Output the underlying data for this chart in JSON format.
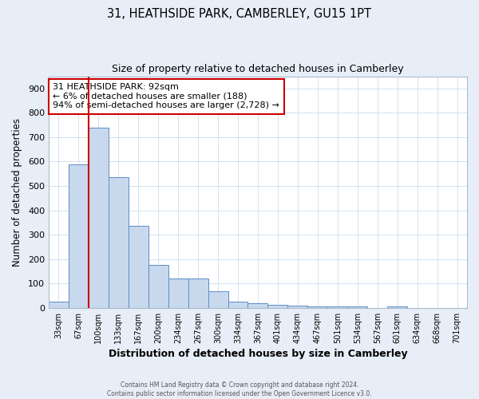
{
  "title": "31, HEATHSIDE PARK, CAMBERLEY, GU15 1PT",
  "subtitle": "Size of property relative to detached houses in Camberley",
  "xlabel": "Distribution of detached houses by size in Camberley",
  "ylabel": "Number of detached properties",
  "bar_labels": [
    "33sqm",
    "67sqm",
    "100sqm",
    "133sqm",
    "167sqm",
    "200sqm",
    "234sqm",
    "267sqm",
    "300sqm",
    "334sqm",
    "367sqm",
    "401sqm",
    "434sqm",
    "467sqm",
    "501sqm",
    "534sqm",
    "567sqm",
    "601sqm",
    "634sqm",
    "668sqm",
    "701sqm"
  ],
  "bar_values": [
    25,
    590,
    740,
    535,
    337,
    177,
    120,
    120,
    67,
    25,
    20,
    12,
    8,
    6,
    6,
    6,
    0,
    5,
    0,
    0,
    0
  ],
  "bar_color": "#c8d9ee",
  "bar_edgecolor": "#5b8cc8",
  "ylim": [
    0,
    950
  ],
  "yticks": [
    0,
    100,
    200,
    300,
    400,
    500,
    600,
    700,
    800,
    900
  ],
  "property_line_color": "#cc0000",
  "annotation_text": "31 HEATHSIDE PARK: 92sqm\n← 6% of detached houses are smaller (188)\n94% of semi-detached houses are larger (2,728) →",
  "footer_line1": "Contains HM Land Registry data © Crown copyright and database right 2024.",
  "footer_line2": "Contains public sector information licensed under the Open Government Licence v3.0.",
  "bg_color": "#ffffff",
  "outer_bg_color": "#e8eef8",
  "grid_color": "#ccddee"
}
